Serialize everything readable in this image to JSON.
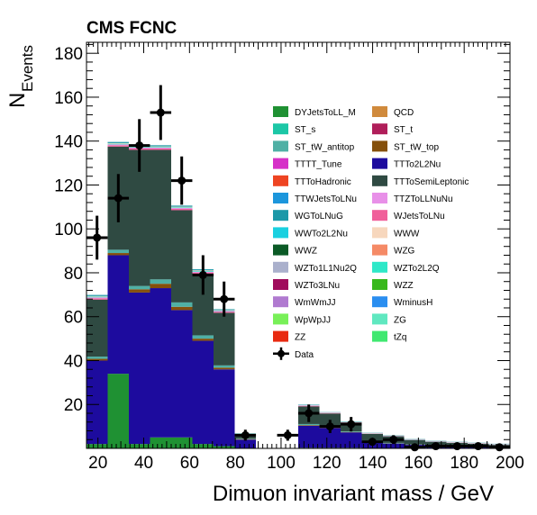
{
  "chart_data": {
    "type": "bar",
    "title": "CMS FCNC",
    "xlabel": "Dimuon invariant mass / GeV",
    "ylabel_main": "N",
    "ylabel_sub": "Events",
    "xlim": [
      15,
      200
    ],
    "ylim": [
      0,
      185
    ],
    "x_ticks": [
      20,
      40,
      60,
      80,
      100,
      120,
      140,
      160,
      180,
      200
    ],
    "y_ticks": [
      20,
      40,
      60,
      80,
      100,
      120,
      140,
      160,
      180
    ],
    "bin_edges": [
      15,
      24.25,
      33.5,
      42.75,
      52,
      61.25,
      70.5,
      79.75,
      89,
      98.25,
      107.5,
      116.75,
      126,
      135.25,
      144.5,
      153.75,
      163,
      172.25,
      181.5,
      190.75,
      200
    ],
    "stack_series": [
      {
        "name": "DYJetsToLL_M",
        "color": "#1f9133",
        "values": [
          2,
          34,
          2,
          5,
          5,
          2,
          1,
          0,
          0,
          0,
          0.3,
          0.3,
          0.3,
          0.2,
          0.2,
          0.1,
          0.1,
          0.1,
          0.1,
          0.1
        ]
      },
      {
        "name": "TTTo2L2Nu",
        "color": "#1d0b9e",
        "values": [
          38,
          54,
          69,
          68,
          58,
          47,
          35,
          4,
          0,
          0,
          10,
          9,
          7,
          3,
          2,
          1.5,
          1.2,
          1,
          0.8,
          0.5
        ]
      },
      {
        "name": "ST_tW_top",
        "color": "#85500c",
        "values": [
          0.8,
          1,
          1.5,
          2,
          1.5,
          1,
          0.8,
          0.2,
          0,
          0,
          0.3,
          0.3,
          0.2,
          0.2,
          0.1,
          0.1,
          0.1,
          0.1,
          0.1,
          0.1
        ]
      },
      {
        "name": "ST_tW_antitop",
        "color": "#4fb0a5",
        "values": [
          1,
          1.5,
          1.5,
          2,
          2,
          1.5,
          1,
          0.2,
          0,
          0,
          0.5,
          0.3,
          0.3,
          0.2,
          0.2,
          0.1,
          0.1,
          0.1,
          0.1,
          0.1
        ]
      },
      {
        "name": "TTToSemiLeptonic",
        "color": "#2f4a42",
        "values": [
          26,
          47,
          62,
          59,
          42,
          28,
          24,
          2,
          0,
          0,
          8,
          6,
          4,
          3,
          3,
          2,
          1.5,
          1.2,
          1,
          0.8
        ]
      },
      {
        "name": "WJetsToLNu",
        "color": "#f0609a",
        "values": [
          0.6,
          0.6,
          0.6,
          0.6,
          0.6,
          0.6,
          0.5,
          0.1,
          0,
          0,
          0.2,
          0.2,
          0.1,
          0.1,
          0.1,
          0.1,
          0.1,
          0.1,
          0.1,
          0.1
        ]
      },
      {
        "name": "TTZToLLNuNu",
        "color": "#e890e8",
        "values": [
          0.4,
          0.4,
          0.4,
          0.4,
          0.4,
          0.4,
          0.3,
          0.1,
          0,
          0,
          0.2,
          0.1,
          0.1,
          0.1,
          0.1,
          0.1,
          0.1,
          0.1,
          0.1,
          0.1
        ]
      },
      {
        "name": "WZTo2L2Q",
        "color": "#2ee8c8",
        "values": [
          0.3,
          0.3,
          0.3,
          0.3,
          0.3,
          0.3,
          0.2,
          0.1,
          0,
          0,
          0.1,
          0.1,
          0.1,
          0.1,
          0.1,
          0.1,
          0.1,
          0.1,
          0.1,
          0.1
        ]
      },
      {
        "name": "WWW",
        "color": "#f7d7bd",
        "values": [
          0.3,
          0.3,
          0.3,
          0.3,
          0.3,
          0.3,
          0.2,
          0.1,
          0,
          0,
          0.1,
          0.1,
          0.1,
          0.1,
          0.1,
          0.1,
          0.1,
          0.1,
          0.1,
          0.1
        ]
      },
      {
        "name": "WGToLNuG",
        "color": "#1b98a8",
        "values": [
          0.5,
          0.5,
          0.5,
          0.5,
          0.5,
          0.5,
          0.4,
          0.1,
          0,
          0,
          0.2,
          0.1,
          0.1,
          0.1,
          0.1,
          0.1,
          0.1,
          0.1,
          0.1,
          0.1
        ]
      }
    ],
    "legend_entries": [
      {
        "name": "DYJetsToLL_M",
        "color": "#1f9133"
      },
      {
        "name": "QCD",
        "color": "#d08a3c"
      },
      {
        "name": "ST_s",
        "color": "#1cc7a6"
      },
      {
        "name": "ST_t",
        "color": "#b01e5a"
      },
      {
        "name": "ST_tW_antitop",
        "color": "#4fb0a5"
      },
      {
        "name": "ST_tW_top",
        "color": "#85500c"
      },
      {
        "name": "TTTT_Tune",
        "color": "#d630c8"
      },
      {
        "name": "TTTo2L2Nu",
        "color": "#1d0b9e"
      },
      {
        "name": "TTToHadronic",
        "color": "#ee4422"
      },
      {
        "name": "TTToSemiLeptonic",
        "color": "#2f4a42"
      },
      {
        "name": "TTWJetsToLNu",
        "color": "#1c96dc"
      },
      {
        "name": "TTZToLLNuNu",
        "color": "#e890e8"
      },
      {
        "name": "WGToLNuG",
        "color": "#1b98a8"
      },
      {
        "name": "WJetsToLNu",
        "color": "#f0609a"
      },
      {
        "name": "WWTo2L2Nu",
        "color": "#1ad0e0"
      },
      {
        "name": "WWW",
        "color": "#f7d7bd"
      },
      {
        "name": "WWZ",
        "color": "#0b5a26"
      },
      {
        "name": "WZG",
        "color": "#f58a66"
      },
      {
        "name": "WZTo1L1Nu2Q",
        "color": "#aab0cc"
      },
      {
        "name": "WZTo2L2Q",
        "color": "#2ee8c8"
      },
      {
        "name": "WZTo3LNu",
        "color": "#a00c5c"
      },
      {
        "name": "WZZ",
        "color": "#38b81c"
      },
      {
        "name": "WmWmJJ",
        "color": "#b07ad0"
      },
      {
        "name": "WminusH",
        "color": "#2a8ef0"
      },
      {
        "name": "WpWpJJ",
        "color": "#78f058"
      },
      {
        "name": "ZG",
        "color": "#60e8c0"
      },
      {
        "name": "ZZ",
        "color": "#e82a10"
      },
      {
        "name": "tZq",
        "color": "#40e870"
      }
    ],
    "data_series": {
      "name": "Data",
      "color": "#000000",
      "points": [
        {
          "x": 19.6,
          "y": 96,
          "err": 10
        },
        {
          "x": 28.9,
          "y": 114,
          "err": 11
        },
        {
          "x": 38.1,
          "y": 138,
          "err": 12
        },
        {
          "x": 47.4,
          "y": 153,
          "err": 12.5
        },
        {
          "x": 56.6,
          "y": 122,
          "err": 11
        },
        {
          "x": 65.9,
          "y": 79,
          "err": 9
        },
        {
          "x": 75.1,
          "y": 68,
          "err": 8
        },
        {
          "x": 84.4,
          "y": 6,
          "err": 2.5
        },
        {
          "x": 102.9,
          "y": 6,
          "err": 2.5
        },
        {
          "x": 112.1,
          "y": 16,
          "err": 4
        },
        {
          "x": 121.4,
          "y": 10,
          "err": 3
        },
        {
          "x": 130.6,
          "y": 11,
          "err": 3.3
        },
        {
          "x": 139.9,
          "y": 3,
          "err": 1.7
        },
        {
          "x": 149.1,
          "y": 4,
          "err": 2
        },
        {
          "x": 158.4,
          "y": 0.5,
          "err": 0.7
        },
        {
          "x": 167.6,
          "y": 1,
          "err": 1
        },
        {
          "x": 176.9,
          "y": 1,
          "err": 1
        },
        {
          "x": 186.1,
          "y": 1,
          "err": 1
        },
        {
          "x": 195.4,
          "y": 0.5,
          "err": 0.7
        }
      ]
    },
    "legend_placement": "top-right inside plot, two columns",
    "grid": false
  }
}
